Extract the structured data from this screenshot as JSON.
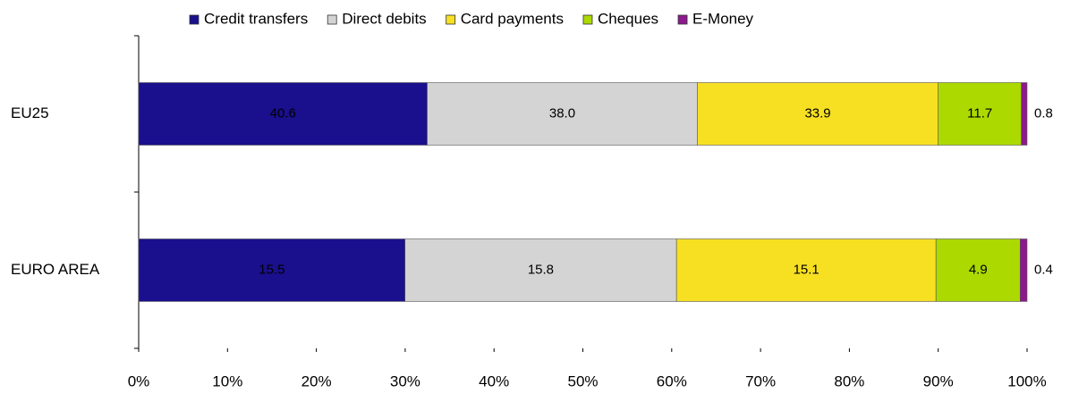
{
  "chart_data": {
    "type": "bar",
    "orientation": "horizontal",
    "stacking": "percent",
    "categories": [
      "EU25",
      "EURO AREA"
    ],
    "series": [
      {
        "name": "Credit transfers",
        "color": "#1a0f8c",
        "values": [
          40.6,
          15.5
        ],
        "value_labels": [
          "40.6",
          "15.5"
        ]
      },
      {
        "name": "Direct debits",
        "color": "#d4d4d4",
        "values": [
          38.0,
          15.8
        ],
        "value_labels": [
          "38.0",
          "15.8"
        ]
      },
      {
        "name": "Card payments",
        "color": "#f7e022",
        "values": [
          33.9,
          15.1
        ],
        "value_labels": [
          "33.9",
          "15.1"
        ]
      },
      {
        "name": "Cheques",
        "color": "#acd900",
        "values": [
          11.7,
          4.9
        ],
        "value_labels": [
          "11.7",
          "4.9"
        ]
      },
      {
        "name": "E-Money",
        "color": "#8c1a8c",
        "values": [
          0.8,
          0.4
        ],
        "value_labels": [
          "0.8",
          "0.4"
        ]
      }
    ],
    "xlim": [
      0,
      100
    ],
    "xticks": [
      {
        "value": 0,
        "label": "0%"
      },
      {
        "value": 10,
        "label": "10%"
      },
      {
        "value": 20,
        "label": "20%"
      },
      {
        "value": 30,
        "label": "30%"
      },
      {
        "value": 40,
        "label": "40%"
      },
      {
        "value": 50,
        "label": "50%"
      },
      {
        "value": 60,
        "label": "60%"
      },
      {
        "value": 70,
        "label": "70%"
      },
      {
        "value": 80,
        "label": "80%"
      },
      {
        "value": 90,
        "label": "90%"
      },
      {
        "value": 100,
        "label": "100%"
      }
    ],
    "legend": "top"
  }
}
